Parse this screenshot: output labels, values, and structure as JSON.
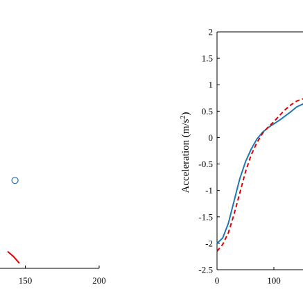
{
  "chart_data": [
    {
      "type": "scatter",
      "xlim": [
        100,
        200
      ],
      "xticks": [
        150,
        200
      ],
      "xtick_labels": [
        "150",
        "200"
      ],
      "series": [
        {
          "kind": "line",
          "color": "#e00000",
          "style": "solid",
          "x": [
            138,
            142,
            146
          ],
          "y": [
            0.0,
            -0.015,
            -0.035
          ]
        },
        {
          "kind": "marker",
          "marker": "circle-open",
          "color": "#1f6fb5",
          "x": [
            143
          ],
          "y": [
            0.21
          ]
        }
      ],
      "ylim": [
        -0.05,
        0.6
      ]
    },
    {
      "type": "line",
      "ylabel": "Acceleration (m/s",
      "ylabel_superscript": "2",
      "ylabel_suffix": ")",
      "xlim": [
        0,
        180
      ],
      "ylim": [
        -2.5,
        2
      ],
      "xticks": [
        0,
        100
      ],
      "xtick_labels": [
        "0",
        "100"
      ],
      "yticks": [
        2,
        1.5,
        1,
        0.5,
        0,
        -0.5,
        -1,
        -1.5,
        -2,
        -2.5
      ],
      "ytick_labels": [
        "2",
        "1.5",
        "1",
        "0.5",
        "0",
        "-0.5",
        "-1",
        "-1.5",
        "-2",
        "-2.5"
      ],
      "grid": false,
      "series": [
        {
          "color": "#1f77b4",
          "style": "solid",
          "x": [
            0,
            10,
            20,
            30,
            40,
            50,
            60,
            70,
            80,
            90,
            100,
            110,
            120,
            130,
            140,
            150,
            160,
            170,
            180
          ],
          "y": [
            -2.0,
            -1.9,
            -1.62,
            -1.2,
            -0.78,
            -0.46,
            -0.22,
            -0.03,
            0.1,
            0.19,
            0.26,
            0.33,
            0.41,
            0.49,
            0.58,
            0.63,
            0.68,
            0.71,
            0.72
          ]
        },
        {
          "color": "#e00000",
          "style": "dashed",
          "x": [
            0,
            10,
            20,
            30,
            40,
            50,
            60,
            70,
            80,
            90,
            100,
            110,
            120,
            130,
            140,
            150,
            160,
            170,
            180
          ],
          "y": [
            -2.15,
            -2.02,
            -1.8,
            -1.45,
            -1.05,
            -0.65,
            -0.33,
            -0.1,
            0.08,
            0.2,
            0.3,
            0.42,
            0.53,
            0.62,
            0.69,
            0.73,
            0.75,
            0.76,
            0.77
          ]
        }
      ]
    }
  ]
}
